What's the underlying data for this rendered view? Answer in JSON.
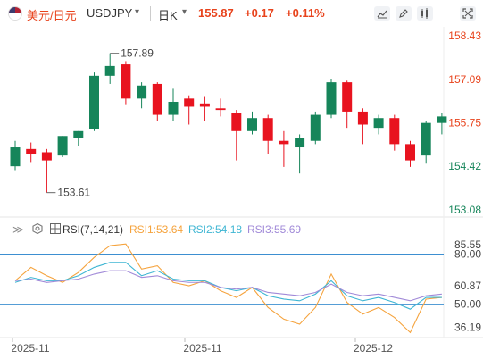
{
  "header": {
    "title": "美元/日元",
    "symbol": "USDJPY",
    "period": "日K",
    "price": "155.87",
    "change": "+0.17",
    "change_pct": "+0.11%"
  },
  "toolbar": {
    "icons": [
      "draw-tools-icon",
      "edit-icon",
      "compare-icon",
      "fullscreen-icon"
    ]
  },
  "colors": {
    "up": "#16855a",
    "down": "#e8131f",
    "accent": "#e8431c"
  },
  "price_axis": {
    "labels": [
      "158.43",
      "157.09",
      "155.75",
      "154.42",
      "153.08"
    ]
  },
  "date_axis": {
    "labels": [
      "2025-11",
      "2025-11",
      "2025-12"
    ]
  },
  "annotations": {
    "high": "157.89",
    "low": "153.61"
  },
  "rsi": {
    "label": "RSI(7,14,21)",
    "rsi1": "RSI1:53.64",
    "rsi2": "RSI2:54.18",
    "rsi3": "RSI3:55.69",
    "axis_labels": [
      "85.55",
      "80.00",
      "60.87",
      "50.00",
      "36.19"
    ],
    "colors": {
      "rsi1": "#f5a33d",
      "rsi2": "#3fb6d3",
      "rsi3": "#a18ad8",
      "line80": "#3d8fd1",
      "line50": "#3d8fd1"
    }
  },
  "chart_data": [
    {
      "type": "candlestick",
      "title": "",
      "ylim": [
        153.08,
        158.43
      ],
      "series": [
        {
          "o": 154.42,
          "h": 155.2,
          "l": 154.3,
          "c": 155.0
        },
        {
          "o": 154.95,
          "h": 155.15,
          "l": 154.55,
          "c": 154.8
        },
        {
          "o": 154.85,
          "h": 154.95,
          "l": 153.61,
          "c": 154.6
        },
        {
          "o": 154.75,
          "h": 155.35,
          "l": 154.7,
          "c": 155.35
        },
        {
          "o": 155.3,
          "h": 155.5,
          "l": 155.05,
          "c": 155.5
        },
        {
          "o": 155.55,
          "h": 157.3,
          "l": 155.5,
          "c": 157.2
        },
        {
          "o": 157.2,
          "h": 157.89,
          "l": 156.95,
          "c": 157.5
        },
        {
          "o": 157.55,
          "h": 157.65,
          "l": 156.3,
          "c": 156.5
        },
        {
          "o": 156.5,
          "h": 157.0,
          "l": 156.2,
          "c": 156.9
        },
        {
          "o": 156.95,
          "h": 157.0,
          "l": 155.8,
          "c": 156.0
        },
        {
          "o": 156.0,
          "h": 156.8,
          "l": 155.8,
          "c": 156.4
        },
        {
          "o": 156.5,
          "h": 156.6,
          "l": 155.7,
          "c": 156.25
        },
        {
          "o": 156.35,
          "h": 156.55,
          "l": 155.8,
          "c": 156.25
        },
        {
          "o": 156.2,
          "h": 156.5,
          "l": 155.95,
          "c": 156.15
        },
        {
          "o": 156.05,
          "h": 156.15,
          "l": 154.6,
          "c": 155.5
        },
        {
          "o": 155.5,
          "h": 156.1,
          "l": 155.4,
          "c": 155.9
        },
        {
          "o": 155.9,
          "h": 156.0,
          "l": 154.8,
          "c": 155.2
        },
        {
          "o": 155.2,
          "h": 155.5,
          "l": 154.4,
          "c": 155.1
        },
        {
          "o": 155.0,
          "h": 155.4,
          "l": 154.2,
          "c": 155.3
        },
        {
          "o": 155.2,
          "h": 156.1,
          "l": 155.1,
          "c": 156.0
        },
        {
          "o": 156.0,
          "h": 157.1,
          "l": 155.9,
          "c": 157.0
        },
        {
          "o": 157.0,
          "h": 157.05,
          "l": 155.6,
          "c": 156.1
        },
        {
          "o": 156.1,
          "h": 156.2,
          "l": 155.1,
          "c": 155.7
        },
        {
          "o": 155.6,
          "h": 156.0,
          "l": 155.4,
          "c": 155.9
        },
        {
          "o": 155.9,
          "h": 156.0,
          "l": 154.9,
          "c": 155.1
        },
        {
          "o": 155.1,
          "h": 155.2,
          "l": 154.4,
          "c": 154.6
        },
        {
          "o": 154.75,
          "h": 155.8,
          "l": 154.5,
          "c": 155.75
        },
        {
          "o": 155.75,
          "h": 156.05,
          "l": 155.4,
          "c": 155.95
        }
      ]
    },
    {
      "type": "line",
      "title": "RSI(7,14,21)",
      "ylim": [
        30,
        92
      ],
      "series": [
        {
          "name": "RSI1",
          "values": [
            64,
            72,
            67,
            63,
            69,
            78,
            85,
            86,
            71,
            73,
            63,
            61,
            64,
            58,
            54,
            60,
            48,
            41,
            38,
            48,
            68,
            51,
            44,
            48,
            42,
            33,
            53,
            54
          ]
        },
        {
          "name": "RSI2",
          "values": [
            63,
            66,
            64,
            64,
            67,
            72,
            75,
            75,
            67,
            70,
            65,
            64,
            64,
            60,
            58,
            60,
            55,
            53,
            52,
            56,
            64,
            55,
            52,
            54,
            51,
            47,
            54,
            54
          ]
        },
        {
          "name": "RSI3",
          "values": [
            64,
            65,
            63,
            64,
            65,
            68,
            70,
            70,
            66,
            67,
            64,
            63,
            63,
            60,
            59,
            60,
            57,
            56,
            55,
            57,
            62,
            57,
            55,
            56,
            54,
            52,
            55,
            56
          ]
        }
      ],
      "reference_lines": [
        80,
        50
      ]
    }
  ]
}
